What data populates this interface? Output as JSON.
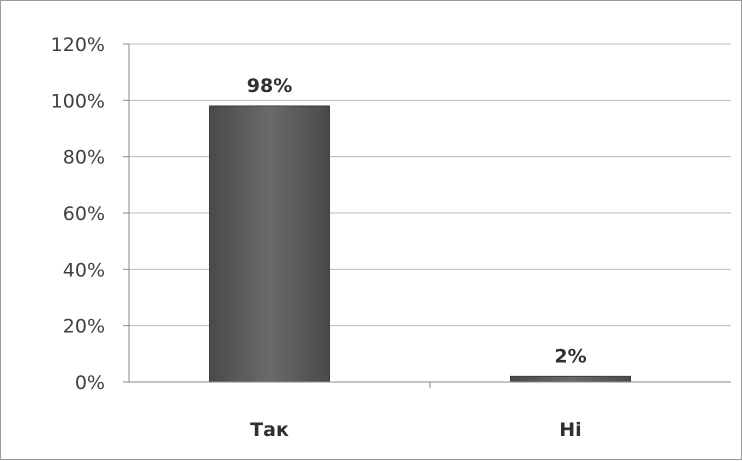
{
  "chart_data": {
    "type": "bar",
    "categories": [
      "Так",
      "Ні"
    ],
    "values": [
      98,
      2
    ],
    "data_labels": [
      "98%",
      "2%"
    ],
    "ylim": [
      0,
      120
    ],
    "yticks": [
      0,
      20,
      40,
      60,
      80,
      100,
      120
    ],
    "ytick_labels": [
      "0%",
      "20%",
      "40%",
      "60%",
      "80%",
      "100%",
      "120%"
    ],
    "grid": true,
    "legend": "none",
    "bar_color": "#5a5a5a"
  }
}
